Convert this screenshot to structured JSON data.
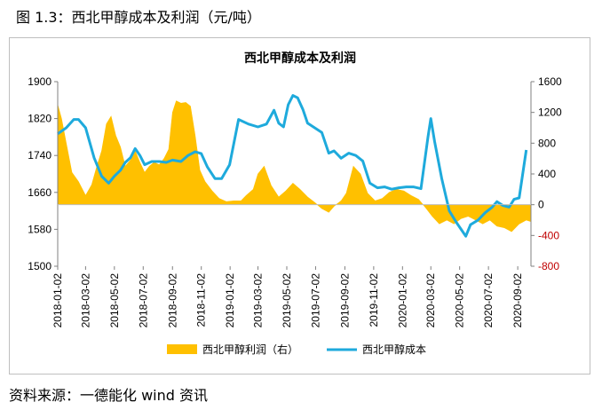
{
  "caption": "图 1.3：西北甲醇成本及利润（元/吨）",
  "source": "资料来源：一德能化  wind 资讯",
  "chart_data": {
    "type": "line",
    "title": "西北甲醇成本及利润",
    "colors": {
      "profit": "#ffc000",
      "cost": "#1eaadc",
      "negative_tick": "#c00000"
    },
    "y_left": {
      "ylim": [
        1500,
        1900
      ],
      "ticks": [
        "1900",
        "1820",
        "1740",
        "1660",
        "1580",
        "1500"
      ]
    },
    "y_right": {
      "ylim": [
        -800,
        1600
      ],
      "ticks": [
        "1600",
        "1200",
        "800",
        "400",
        "0",
        "-400",
        "-800"
      ]
    },
    "x_ticks": [
      "2018-01-02",
      "2018-03-02",
      "2018-05-02",
      "2018-07-02",
      "2018-09-02",
      "2018-11-02",
      "2019-01-02",
      "2019-03-02",
      "2019-05-02",
      "2019-07-02",
      "2019-09-02",
      "2019-11-02",
      "2020-01-02",
      "2020-03-02",
      "2020-05-02",
      "2020-07-02",
      "2020-09-02"
    ],
    "series": [
      {
        "name": "西北甲醇利润（右）",
        "kind": "area",
        "axis": "right",
        "x": [
          "2018-01-02",
          "2018-01-10",
          "2018-01-20",
          "2018-02-01",
          "2018-02-15",
          "2018-03-02",
          "2018-03-15",
          "2018-03-25",
          "2018-04-05",
          "2018-04-15",
          "2018-04-25",
          "2018-05-05",
          "2018-05-15",
          "2018-05-25",
          "2018-06-05",
          "2018-06-15",
          "2018-06-25",
          "2018-07-05",
          "2018-07-15",
          "2018-07-25",
          "2018-08-05",
          "2018-08-15",
          "2018-08-25",
          "2018-09-02",
          "2018-09-10",
          "2018-09-20",
          "2018-09-30",
          "2018-10-10",
          "2018-10-20",
          "2018-10-30",
          "2018-11-10",
          "2018-11-25",
          "2018-12-10",
          "2018-12-25",
          "2019-01-10",
          "2019-01-25",
          "2019-02-05",
          "2019-02-20",
          "2019-03-02",
          "2019-03-15",
          "2019-03-30",
          "2019-04-15",
          "2019-04-30",
          "2019-05-15",
          "2019-05-30",
          "2019-06-15",
          "2019-06-30",
          "2019-07-15",
          "2019-07-30",
          "2019-08-10",
          "2019-08-25",
          "2019-09-05",
          "2019-09-20",
          "2019-10-05",
          "2019-10-20",
          "2019-11-05",
          "2019-11-20",
          "2019-12-05",
          "2019-12-20",
          "2020-01-05",
          "2020-01-20",
          "2020-02-05",
          "2020-02-20",
          "2020-03-05",
          "2020-03-20",
          "2020-04-05",
          "2020-04-20",
          "2020-05-05",
          "2020-05-20",
          "2020-06-05",
          "2020-06-20",
          "2020-07-05",
          "2020-07-20",
          "2020-08-05",
          "2020-08-20",
          "2020-09-05",
          "2020-09-20",
          "2020-09-30"
        ],
        "values": [
          1300,
          1120,
          800,
          420,
          300,
          120,
          260,
          480,
          700,
          1050,
          1150,
          900,
          750,
          500,
          580,
          700,
          550,
          420,
          500,
          550,
          520,
          600,
          720,
          1200,
          1350,
          1320,
          1330,
          1280,
          900,
          450,
          300,
          180,
          80,
          40,
          50,
          50,
          120,
          200,
          400,
          500,
          250,
          100,
          180,
          280,
          200,
          100,
          30,
          -50,
          -100,
          -20,
          50,
          150,
          500,
          400,
          150,
          50,
          80,
          160,
          200,
          180,
          120,
          70,
          -40,
          -150,
          -250,
          -200,
          -250,
          -180,
          -150,
          -200,
          -250,
          -200,
          -280,
          -300,
          -350,
          -250,
          -200,
          -220
        ]
      },
      {
        "name": "西北甲醇成本",
        "kind": "line",
        "axis": "left",
        "x": [
          "2018-01-02",
          "2018-01-20",
          "2018-02-05",
          "2018-02-15",
          "2018-03-02",
          "2018-03-20",
          "2018-04-05",
          "2018-04-20",
          "2018-05-02",
          "2018-05-15",
          "2018-05-25",
          "2018-06-05",
          "2018-06-15",
          "2018-06-25",
          "2018-07-05",
          "2018-07-20",
          "2018-08-05",
          "2018-08-20",
          "2018-09-02",
          "2018-09-20",
          "2018-10-05",
          "2018-10-20",
          "2018-11-02",
          "2018-11-15",
          "2018-12-01",
          "2018-12-15",
          "2019-01-01",
          "2019-01-20",
          "2019-02-10",
          "2019-03-02",
          "2019-03-20",
          "2019-04-05",
          "2019-04-15",
          "2019-04-25",
          "2019-05-05",
          "2019-05-15",
          "2019-05-25",
          "2019-06-05",
          "2019-06-15",
          "2019-06-30",
          "2019-07-15",
          "2019-07-30",
          "2019-08-10",
          "2019-08-25",
          "2019-09-10",
          "2019-09-25",
          "2019-10-10",
          "2019-10-25",
          "2019-11-10",
          "2019-11-25",
          "2019-12-10",
          "2019-12-25",
          "2020-01-10",
          "2020-01-25",
          "2020-02-10",
          "2020-02-25",
          "2020-03-02",
          "2020-03-10",
          "2020-03-25",
          "2020-04-10",
          "2020-04-25",
          "2020-05-05",
          "2020-05-15",
          "2020-05-25",
          "2020-06-10",
          "2020-06-25",
          "2020-07-10",
          "2020-07-20",
          "2020-08-01",
          "2020-08-15",
          "2020-08-25",
          "2020-09-05",
          "2020-09-20"
        ],
        "values": [
          1787,
          1800,
          1818,
          1818,
          1800,
          1735,
          1695,
          1680,
          1695,
          1708,
          1725,
          1735,
          1755,
          1740,
          1720,
          1727,
          1727,
          1725,
          1730,
          1727,
          1740,
          1748,
          1744,
          1715,
          1690,
          1690,
          1720,
          1818,
          1808,
          1802,
          1808,
          1838,
          1810,
          1802,
          1850,
          1870,
          1865,
          1840,
          1810,
          1800,
          1790,
          1745,
          1750,
          1734,
          1745,
          1740,
          1728,
          1680,
          1670,
          1672,
          1667,
          1670,
          1672,
          1672,
          1668,
          1780,
          1820,
          1770,
          1690,
          1620,
          1595,
          1580,
          1565,
          1590,
          1600,
          1616,
          1628,
          1640,
          1632,
          1628,
          1645,
          1648,
          1752
        ]
      }
    ]
  }
}
